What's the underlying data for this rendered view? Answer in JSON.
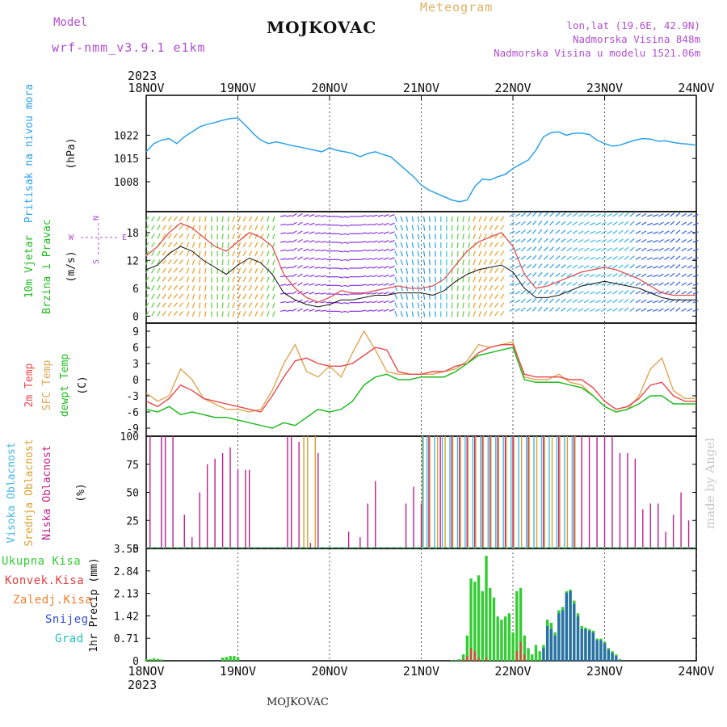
{
  "header": {
    "model_label": "Model",
    "model_name": "wrf-nmm_v3.9.1 e1km",
    "station": "MOJKOVAC",
    "meteogram_label": "Meteogram",
    "lonlat": "lon,lat (19.6E, 42.9N)",
    "elevation": "Nadmorska Visina 848m",
    "model_elevation": "Nadmorska Visina u modelu 1521.06m",
    "year": "2023"
  },
  "footer": {
    "station": "MOJKOVAC",
    "year": "2023",
    "credit": "made by Angel"
  },
  "colors": {
    "pressure": "#2ea2e8",
    "wind_avg": "#111111",
    "wind_gust": "#e05050",
    "temp_2m": "#e8474a",
    "temp_sfc": "#dfa654",
    "dewpoint": "#22bb22",
    "cloud_high": "#44b8e0",
    "cloud_mid": "#d9a030",
    "cloud_low": "#c0208a",
    "precip_total": "#33cc33",
    "precip_conv": "#e04040",
    "precip_frz": "#f08030",
    "precip_snow": "#3050d8",
    "precip_graupel": "#20c0b0",
    "grid": "#555555"
  },
  "chart_data": [
    {
      "type": "line",
      "panel": "pressure",
      "ylabel_parts": [
        "Pritisak na nivou mora",
        "(hPa)"
      ],
      "x_ticks": [
        "18NOV",
        "19NOV",
        "20NOV",
        "21NOV",
        "22NOV",
        "23NOV",
        "24NOV"
      ],
      "yticks": [
        1008,
        1015,
        1022
      ],
      "ylim": [
        999,
        1034
      ],
      "x": [
        0,
        2,
        4,
        6,
        8,
        10,
        12,
        14,
        16,
        18,
        20,
        22,
        24,
        26,
        28,
        30,
        32,
        34,
        36,
        38,
        40,
        42,
        44,
        46,
        48,
        50,
        52,
        54,
        56,
        58,
        60,
        62,
        64,
        66,
        68,
        70,
        72,
        74,
        76,
        78,
        80,
        82,
        84,
        86,
        88,
        90,
        92,
        94,
        96,
        98,
        100,
        102,
        104,
        106,
        108,
        110,
        112,
        114,
        116,
        118,
        120,
        122,
        124,
        126,
        128,
        130,
        132,
        134,
        136,
        138,
        140,
        142,
        144
      ],
      "series": [
        {
          "values": [
            1017.0,
            1019.5,
            1020.5,
            1021.0,
            1019.5,
            1021.5,
            1023.0,
            1024.5,
            1025.3,
            1025.8,
            1026.5,
            1027.0,
            1027.2,
            1025.0,
            1022.5,
            1020.5,
            1019.5,
            1020.0,
            1019.5,
            1018.9,
            1018.5,
            1018.0,
            1017.5,
            1017.0,
            1018.2,
            1017.4,
            1017.0,
            1016.5,
            1015.5,
            1016.5,
            1017.0,
            1016.2,
            1015.5,
            1013.5,
            1011.5,
            1009.5,
            1007.0,
            1005.5,
            1004.5,
            1003.5,
            1002.5,
            1002.0,
            1002.5,
            1006.5,
            1008.8,
            1008.5,
            1009.5,
            1010.2,
            1012.0,
            1013.3,
            1014.5,
            1017.5,
            1021.5,
            1022.8,
            1023.0,
            1022.0,
            1022.6,
            1022.6,
            1022.2,
            1020.5,
            1019.5,
            1018.7,
            1019.0,
            1019.8,
            1020.5,
            1021.0,
            1020.8,
            1020.2,
            1020.3,
            1019.8,
            1019.5,
            1019.3,
            1019.0
          ]
        }
      ]
    },
    {
      "type": "line",
      "panel": "wind",
      "ylabel_parts": [
        "10m Vjetar",
        "Brzina i Pravac",
        "(m/s)"
      ],
      "compass": {
        "north": "N",
        "west": "W",
        "east": "E",
        "south": "S"
      },
      "yticks": [
        0,
        6,
        12,
        18
      ],
      "ylim": [
        -1.5,
        22.5
      ],
      "x": [
        0,
        3,
        6,
        9,
        12,
        15,
        18,
        21,
        24,
        27,
        30,
        33,
        36,
        39,
        42,
        45,
        48,
        51,
        54,
        57,
        60,
        63,
        66,
        69,
        72,
        75,
        78,
        81,
        84,
        87,
        90,
        93,
        96,
        99,
        102,
        105,
        108,
        111,
        114,
        117,
        120,
        123,
        126,
        129,
        132,
        135,
        138,
        141,
        144
      ],
      "series": [
        {
          "name_key": "average",
          "values": [
            10.0,
            11.0,
            13.5,
            15.0,
            14.0,
            12.0,
            10.5,
            9.0,
            11.0,
            12.5,
            11.5,
            9.0,
            5.0,
            3.5,
            2.5,
            2.0,
            2.5,
            3.5,
            3.5,
            4.0,
            4.5,
            4.5,
            5.0,
            5.0,
            5.0,
            4.5,
            5.5,
            7.5,
            9.0,
            10.0,
            10.5,
            11.0,
            9.5,
            6.0,
            4.0,
            4.0,
            4.5,
            5.5,
            6.5,
            7.0,
            7.5,
            7.0,
            6.5,
            6.0,
            5.0,
            4.0,
            3.5,
            3.5,
            3.5
          ]
        },
        {
          "name_key": "gust",
          "values": [
            13.0,
            15.0,
            18.0,
            20.0,
            19.0,
            17.0,
            15.0,
            14.0,
            16.0,
            18.0,
            17.0,
            15.0,
            9.0,
            6.0,
            4.0,
            3.0,
            4.0,
            5.5,
            5.0,
            5.0,
            5.5,
            6.0,
            6.5,
            6.0,
            6.0,
            6.5,
            8.0,
            11.0,
            14.0,
            16.0,
            17.0,
            18.0,
            15.0,
            9.0,
            6.0,
            6.5,
            7.5,
            8.5,
            9.5,
            10.0,
            10.5,
            10.0,
            9.0,
            8.0,
            6.5,
            5.0,
            4.5,
            4.5,
            4.5
          ]
        }
      ],
      "arrow_directions_deg": [
        210,
        210,
        215,
        220,
        200,
        190,
        180,
        190,
        200,
        210,
        205,
        200,
        80,
        60,
        70,
        80,
        90,
        100,
        90,
        80,
        75,
        70,
        160,
        170,
        170,
        175,
        180,
        185,
        190,
        200,
        210,
        215,
        60,
        50,
        40,
        45,
        50,
        55,
        60,
        65,
        60,
        55,
        50,
        60,
        70,
        60,
        50,
        60,
        70
      ]
    },
    {
      "type": "line",
      "panel": "temperature",
      "ylabel_parts": [
        "2m Temp",
        "SFC Temp",
        "dewpt Temp",
        "(C)"
      ],
      "yticks": [
        -9,
        -6,
        -3,
        0,
        3,
        6,
        9
      ],
      "ylim": [
        -10.5,
        10.5
      ],
      "x": [
        0,
        3,
        6,
        9,
        12,
        15,
        18,
        21,
        24,
        27,
        30,
        33,
        36,
        39,
        42,
        45,
        48,
        51,
        54,
        57,
        60,
        63,
        66,
        69,
        72,
        75,
        78,
        81,
        84,
        87,
        90,
        93,
        96,
        99,
        102,
        105,
        108,
        111,
        114,
        117,
        120,
        123,
        126,
        129,
        132,
        135,
        138,
        141,
        144
      ],
      "series": [
        {
          "name_key": "temp_2m",
          "values": [
            -4.0,
            -5.0,
            -3.5,
            -1.0,
            -2.0,
            -3.5,
            -4.0,
            -4.5,
            -5.0,
            -5.5,
            -6.0,
            -3.0,
            0.5,
            3.5,
            4.0,
            3.0,
            2.5,
            2.5,
            3.0,
            4.5,
            6.0,
            5.5,
            1.5,
            1.0,
            1.0,
            1.5,
            1.5,
            2.5,
            3.0,
            5.0,
            6.0,
            6.5,
            6.5,
            1.0,
            0.5,
            0.5,
            0.5,
            0.0,
            0.0,
            -1.5,
            -4.0,
            -5.5,
            -5.0,
            -3.5,
            -1.0,
            -0.5,
            -3.0,
            -4.0,
            -4.0
          ]
        },
        {
          "name_key": "temp_sfc",
          "values": [
            -2.5,
            -4.0,
            -3.0,
            2.0,
            0.0,
            -3.5,
            -4.5,
            -5.5,
            -5.5,
            -6.0,
            -5.5,
            -2.0,
            3.0,
            6.5,
            1.5,
            0.5,
            2.5,
            0.5,
            5.0,
            9.0,
            5.5,
            1.5,
            1.0,
            1.0,
            1.0,
            1.0,
            1.5,
            2.0,
            3.5,
            6.5,
            6.0,
            6.5,
            7.0,
            0.5,
            0.0,
            0.0,
            1.0,
            -0.5,
            -1.0,
            -3.0,
            -5.0,
            -6.0,
            -5.5,
            -3.0,
            2.0,
            4.0,
            -2.0,
            -3.5,
            -3.5
          ]
        },
        {
          "name_key": "dewpoint",
          "values": [
            -5.5,
            -6.0,
            -5.0,
            -6.5,
            -6.0,
            -6.5,
            -7.0,
            -7.0,
            -7.5,
            -8.0,
            -8.5,
            -9.0,
            -8.0,
            -8.5,
            -7.0,
            -5.5,
            -6.0,
            -5.5,
            -4.0,
            -1.0,
            0.5,
            1.0,
            0.0,
            0.0,
            0.5,
            0.5,
            0.5,
            1.5,
            3.0,
            4.5,
            5.0,
            5.5,
            6.0,
            0.0,
            -0.5,
            -0.5,
            -0.5,
            -1.0,
            -1.5,
            -3.0,
            -5.0,
            -6.0,
            -5.5,
            -4.5,
            -3.0,
            -3.0,
            -4.5,
            -4.5,
            -4.5
          ]
        }
      ]
    },
    {
      "type": "bar",
      "panel": "clouds",
      "ylabel_parts": [
        "Visoka Oblacnost",
        "Srednja Oblacnost",
        "Niska Oblacnost",
        "(%)"
      ],
      "yticks": [
        0,
        25,
        50,
        75,
        100
      ],
      "ylim": [
        0,
        100
      ],
      "series": [
        {
          "name_key": "low",
          "x": [
            1,
            4,
            5,
            7,
            10,
            12,
            14,
            16,
            18,
            20,
            22,
            24,
            26,
            27,
            37,
            38,
            40,
            43,
            45,
            53,
            56,
            58,
            60,
            68,
            70,
            72,
            74,
            77,
            80,
            82,
            84,
            86,
            88,
            90,
            92,
            94,
            96,
            100,
            104,
            108,
            112,
            114,
            116,
            118,
            120,
            122,
            124,
            126,
            128,
            130,
            132,
            134,
            136,
            138,
            140,
            142
          ],
          "values": [
            100,
            100,
            100,
            100,
            30,
            10,
            50,
            75,
            80,
            85,
            90,
            70,
            70,
            70,
            100,
            100,
            95,
            5,
            85,
            15,
            10,
            40,
            60,
            40,
            55,
            40,
            100,
            100,
            100,
            100,
            100,
            100,
            100,
            100,
            100,
            100,
            100,
            100,
            100,
            100,
            100,
            100,
            100,
            100,
            100,
            100,
            85,
            85,
            80,
            35,
            40,
            40,
            15,
            30,
            50,
            25
          ]
        },
        {
          "name_key": "mid",
          "x": [
            41,
            42,
            44,
            72,
            74,
            76,
            78,
            80,
            82,
            84,
            86,
            88,
            90,
            92,
            94,
            96,
            98,
            100,
            102,
            104,
            106,
            108,
            110,
            112
          ],
          "values": [
            100,
            100,
            100,
            100,
            100,
            100,
            100,
            100,
            100,
            100,
            100,
            100,
            100,
            100,
            100,
            100,
            100,
            100,
            100,
            100,
            100,
            100,
            100,
            100
          ]
        },
        {
          "name_key": "high",
          "x": [
            72,
            73,
            75,
            77,
            79,
            81,
            83,
            85,
            87,
            89,
            91,
            93,
            95,
            97,
            99,
            101,
            103,
            105,
            107,
            109,
            111
          ],
          "values": [
            100,
            100,
            100,
            100,
            100,
            100,
            100,
            100,
            100,
            100,
            100,
            100,
            100,
            100,
            100,
            100,
            100,
            100,
            100,
            100,
            100
          ]
        }
      ]
    },
    {
      "type": "bar",
      "panel": "precipitation",
      "ylabel_parts": [
        "1hr Precip (mm)"
      ],
      "legend": [
        "Ukupna Kisa",
        "Konvek.Kisa",
        "Zaledj.Kisa",
        "Snijeg",
        "Grad"
      ],
      "yticks": [
        0,
        0.71,
        1.42,
        2.13,
        2.84,
        3.55
      ],
      "ylim": [
        0,
        3.55
      ],
      "x": [
        0,
        1,
        2,
        3,
        4,
        20,
        21,
        22,
        23,
        24,
        80,
        81,
        82,
        83,
        84,
        85,
        86,
        87,
        88,
        89,
        90,
        91,
        92,
        93,
        94,
        95,
        96,
        97,
        98,
        99,
        100,
        101,
        102,
        103,
        104,
        105,
        106,
        107,
        108,
        109,
        110,
        111,
        112,
        113,
        114,
        115,
        116,
        117,
        118,
        119,
        120,
        121,
        122,
        123,
        124
      ],
      "series": [
        {
          "name_key": "total",
          "values": [
            0.05,
            0.05,
            0.08,
            0.06,
            0.04,
            0.1,
            0.12,
            0.15,
            0.15,
            0.12,
            0.02,
            0.03,
            0.05,
            0.2,
            0.8,
            2.6,
            2.5,
            2.7,
            2.2,
            3.32,
            2.3,
            2.0,
            1.4,
            1.3,
            1.4,
            1.5,
            0.9,
            2.2,
            2.3,
            0.8,
            0.4,
            0.2,
            0.5,
            0.3,
            0.5,
            1.3,
            1.2,
            0.9,
            1.6,
            1.7,
            2.2,
            2.25,
            1.9,
            1.5,
            1.1,
            1.05,
            1.0,
            0.95,
            0.7,
            0.7,
            0.6,
            0.4,
            0.3,
            0.2,
            0.05
          ]
        },
        {
          "name_key": "convective",
          "values": [
            0,
            0,
            0,
            0,
            0,
            0,
            0,
            0,
            0,
            0,
            0,
            0,
            0,
            0.05,
            0.15,
            0.4,
            0.3,
            0.1,
            0,
            0.1,
            0,
            0,
            0,
            0,
            0,
            0,
            0,
            0.3,
            0.6,
            0.2,
            0,
            0,
            0,
            0,
            0,
            0,
            0,
            0,
            0,
            0,
            0,
            0,
            0,
            0,
            0,
            0,
            0,
            0,
            0,
            0,
            0,
            0,
            0,
            0,
            0
          ]
        },
        {
          "name_key": "snow",
          "values": [
            0,
            0,
            0,
            0,
            0,
            0,
            0,
            0,
            0,
            0,
            0,
            0,
            0,
            0,
            0,
            0,
            0,
            0,
            0,
            0,
            0,
            0,
            0,
            0,
            0,
            0,
            0,
            0,
            0,
            0,
            0,
            0,
            0,
            0,
            0.4,
            1.1,
            1.0,
            0.8,
            1.5,
            1.6,
            2.15,
            2.2,
            1.8,
            1.4,
            1.0,
            1.0,
            0.95,
            0.9,
            0.65,
            0.65,
            0.55,
            0.35,
            0.25,
            0.15,
            0.03
          ]
        }
      ]
    }
  ]
}
